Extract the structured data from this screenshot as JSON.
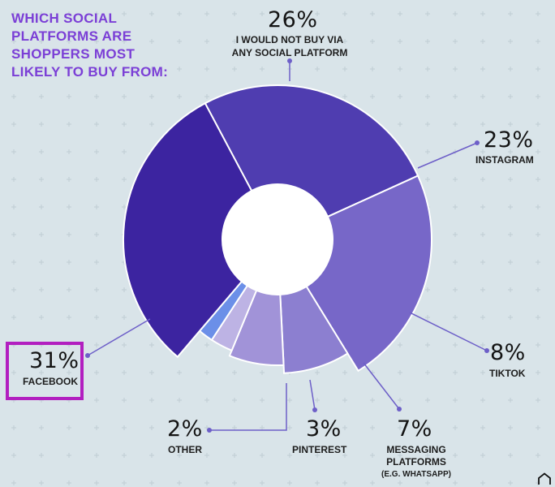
{
  "title_lines": [
    "WHICH SOCIAL",
    "PLATFORMS ARE",
    "SHOPPERS MOST",
    "LIKELY TO BUY FROM:"
  ],
  "chart_data": {
    "type": "pie",
    "title": "WHICH SOCIAL PLATFORMS ARE SHOPPERS MOST LIKELY TO BUY FROM:",
    "slices": [
      {
        "key": "none",
        "label": "I WOULD NOT BUY VIA ANY SOCIAL PLATFORM",
        "value": 26,
        "pct_label": "26%",
        "color": "#4f3db0"
      },
      {
        "key": "instagram",
        "label": "INSTAGRAM",
        "value": 23,
        "pct_label": "23%",
        "color": "#7767c8"
      },
      {
        "key": "tiktok",
        "label": "TIKTOK",
        "value": 8,
        "pct_label": "8%",
        "color": "#8c7fd0"
      },
      {
        "key": "messaging",
        "label": "MESSAGING PLATFORMS (E.G. WHATSAPP)",
        "value": 7,
        "pct_label": "7%",
        "color": "#a193d8"
      },
      {
        "key": "pinterest",
        "label": "PINTEREST",
        "value": 3,
        "pct_label": "3%",
        "color": "#bdb3e4"
      },
      {
        "key": "other",
        "label": "OTHER",
        "value": 2,
        "pct_label": "2%",
        "color": "#6b8fe8"
      },
      {
        "key": "facebook",
        "label": "FACEBOOK",
        "value": 31,
        "pct_label": "31%",
        "color": "#3c24a0"
      }
    ],
    "donut": true,
    "legend": "none",
    "highlighted_slice": "FACEBOOK"
  },
  "labels": {
    "none": {
      "pct": "26%",
      "lines": [
        "I WOULD NOT BUY VIA",
        "ANY SOCIAL PLATFORM"
      ]
    },
    "instagram": {
      "pct": "23%",
      "lines": [
        "INSTAGRAM"
      ]
    },
    "tiktok": {
      "pct": "8%",
      "lines": [
        "TIKTOK"
      ]
    },
    "messaging": {
      "pct": "7%",
      "lines": [
        "MESSAGING",
        "PLATFORMS"
      ],
      "note": "(E.G. WHATSAPP)"
    },
    "pinterest": {
      "pct": "3%",
      "lines": [
        "PINTEREST"
      ]
    },
    "other": {
      "pct": "2%",
      "lines": [
        "OTHER"
      ]
    },
    "facebook": {
      "pct": "31%",
      "lines": [
        "FACEBOOK"
      ]
    }
  },
  "colors": {
    "title": "#7b3fd6",
    "highlight_border": "#b21fc0",
    "leader": "#6d5fc8",
    "background": "#d9e4e9"
  },
  "icons": {
    "corner": "home-outline-icon"
  }
}
